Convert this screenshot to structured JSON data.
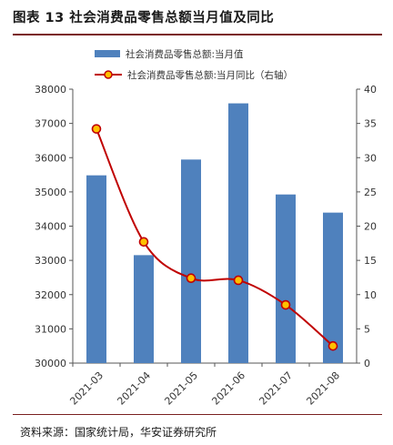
{
  "title": "图表 13  社会消费品零售总额当月值及同比",
  "source": "资料来源：国家统计局，华安证券研究所",
  "colors": {
    "bar": "#4f81bd",
    "line": "#c00000",
    "marker_fill": "#ffc000",
    "title_rule": "#7a1f1f"
  },
  "chart_data": {
    "type": "bar+line",
    "categories": [
      "2021-03",
      "2021-04",
      "2021-05",
      "2021-06",
      "2021-07",
      "2021-08"
    ],
    "series": [
      {
        "name": "社会消费品零售总额:当月值",
        "type": "bar",
        "axis": "left",
        "values": [
          35484,
          33153,
          35945,
          37586,
          34925,
          34395
        ]
      },
      {
        "name": "社会消费品零售总额:当月同比（右轴）",
        "type": "line",
        "axis": "right",
        "values": [
          34.2,
          17.7,
          12.4,
          12.1,
          8.5,
          2.5
        ]
      }
    ],
    "y_left": {
      "min": 30000,
      "max": 38000,
      "step": 1000,
      "ticks": [
        "30000",
        "31000",
        "32000",
        "33000",
        "34000",
        "35000",
        "36000",
        "37000",
        "38000"
      ]
    },
    "y_right": {
      "min": 0,
      "max": 40,
      "step": 5,
      "ticks": [
        "0",
        "5",
        "10",
        "15",
        "20",
        "25",
        "30",
        "35",
        "40"
      ]
    },
    "legend_position": "top-left",
    "grid": false
  }
}
